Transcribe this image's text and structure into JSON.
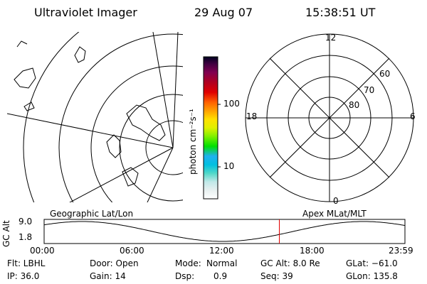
{
  "header": {
    "title": "Ultraviolet Imager",
    "date": "29 Aug 07",
    "time": "15:38:51 UT"
  },
  "geo_panel": {
    "label": "Geographic Lat/Lon"
  },
  "apex_panel": {
    "label": "Apex MLat/MLT",
    "mlt_labels": [
      "12",
      "18",
      "6",
      "0"
    ],
    "lat_labels": [
      "60",
      "70",
      "80"
    ]
  },
  "colorbar": {
    "label": "photon cm⁻²s⁻¹",
    "ticks": [
      "100",
      "10"
    ],
    "colors": [
      "#ffffff",
      "#e8f0f0",
      "#c0e8e8",
      "#50d8c8",
      "#00c0e0",
      "#20b0f0",
      "#00e000",
      "#80f000",
      "#e0f000",
      "#ffe000",
      "#ffa000",
      "#ff6000",
      "#e00000",
      "#b00020",
      "#800050",
      "#400040",
      "#000020"
    ]
  },
  "altitude_plot": {
    "ylabel": "GC Alt",
    "yticks": [
      "9.0",
      "1.8"
    ],
    "xticks": [
      "00:00",
      "06:00",
      "12:00",
      "18:00",
      "23:59"
    ],
    "current_time_fraction": 0.6519,
    "marker_color": "#e00000"
  },
  "footer": {
    "row1": {
      "flt": "Flt: LBHL",
      "door": "Door: Open",
      "mode_label": "Mode:",
      "mode_value": "Normal",
      "gcalt": "GC Alt: 8.0 Re",
      "glat": "GLat: −61.0"
    },
    "row2": {
      "ip": "IP: 36.0",
      "gain": "Gain: 14",
      "dsp_label": "Dsp:",
      "dsp_value": "0.9",
      "seq": "Seq: 39",
      "glon": "GLon: 135.8"
    }
  }
}
